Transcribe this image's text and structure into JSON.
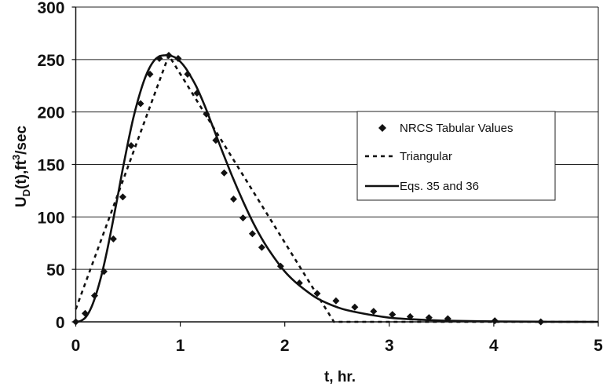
{
  "chart_data": {
    "type": "line",
    "title": "",
    "xlabel": "t, hr.",
    "ylabel": "U_D(t), ft^3/sec",
    "ylabel_parts": {
      "main": "U",
      "sub": "D",
      "mid": "(t),ft",
      "sup": "3",
      "end": "/sec"
    },
    "xlim": [
      0,
      5
    ],
    "ylim": [
      0,
      300
    ],
    "x_ticks": [
      0,
      1,
      2,
      3,
      4,
      5
    ],
    "y_ticks": [
      0,
      50,
      100,
      150,
      200,
      250,
      300
    ],
    "grid": {
      "horizontal": true,
      "vertical": false
    },
    "legend_position": "upper right (inside plot)",
    "series": [
      {
        "name": "NRCS Tabular Values",
        "style": "markers",
        "marker": "diamond",
        "x": [
          0,
          0.09,
          0.18,
          0.27,
          0.36,
          0.45,
          0.53,
          0.62,
          0.71,
          0.8,
          0.89,
          0.98,
          1.07,
          1.16,
          1.25,
          1.34,
          1.42,
          1.51,
          1.6,
          1.69,
          1.78,
          1.96,
          2.14,
          2.31,
          2.49,
          2.67,
          2.85,
          3.03,
          3.2,
          3.38,
          3.56,
          4.01,
          4.45
        ],
        "y": [
          0,
          8,
          25,
          48,
          79,
          119,
          168,
          208,
          236,
          251,
          254,
          251,
          236,
          218,
          198,
          173,
          142,
          117,
          99,
          84,
          71,
          53,
          37,
          27,
          20,
          14,
          10,
          7,
          5,
          4,
          3,
          1,
          0
        ]
      },
      {
        "name": "Triangular",
        "style": "dashed",
        "x": [
          0,
          0.89,
          2.47,
          5.0
        ],
        "y": [
          12,
          254,
          0,
          0
        ]
      },
      {
        "name": "Eqs. 35 and 36",
        "style": "solid",
        "x": [
          0,
          0.05,
          0.1,
          0.15,
          0.2,
          0.25,
          0.3,
          0.35,
          0.4,
          0.45,
          0.5,
          0.55,
          0.6,
          0.65,
          0.7,
          0.75,
          0.8,
          0.85,
          0.89,
          0.95,
          1.0,
          1.05,
          1.1,
          1.15,
          1.2,
          1.25,
          1.3,
          1.35,
          1.4,
          1.5,
          1.6,
          1.7,
          1.8,
          1.9,
          2.0,
          2.1,
          2.2,
          2.3,
          2.4,
          2.5,
          2.6,
          2.8,
          3.0,
          3.2,
          3.5,
          4.0,
          4.5,
          5.0
        ],
        "y": [
          0,
          1,
          5,
          14,
          28,
          46,
          68,
          93,
          119,
          146,
          171,
          194,
          213,
          229,
          241,
          249,
          253,
          254,
          254,
          252,
          248,
          242,
          234,
          225,
          214,
          202,
          189,
          176,
          163,
          138,
          115,
          94,
          76,
          61,
          48,
          38,
          30,
          23,
          18,
          14,
          11,
          7,
          4,
          2.5,
          1.2,
          0.4,
          0.1,
          0
        ]
      }
    ]
  },
  "legend": {
    "items": [
      {
        "label": "NRCS Tabular Values",
        "symbol": "diamond-icon"
      },
      {
        "label": "Triangular",
        "symbol": "dashed-line-icon"
      },
      {
        "label": "Eqs. 35 and 36",
        "symbol": "solid-line-icon"
      }
    ]
  },
  "colors": {
    "series": "#111111",
    "grid": "#222222",
    "background": "#ffffff"
  }
}
